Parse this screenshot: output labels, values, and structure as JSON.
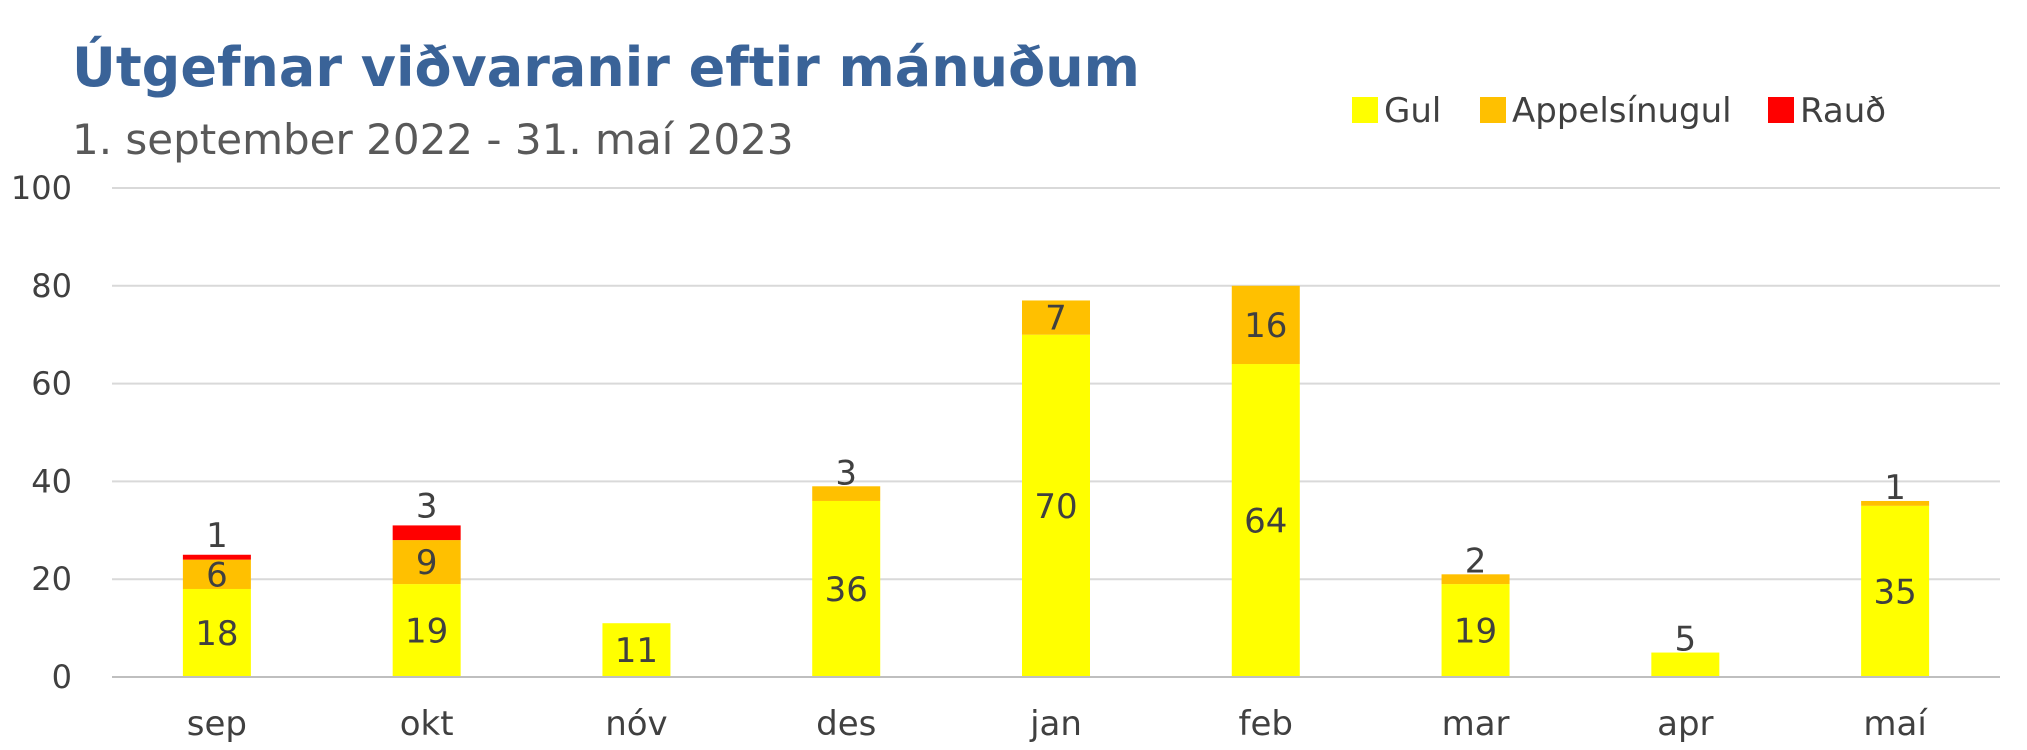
{
  "chart_data": {
    "type": "bar",
    "stacked": true,
    "title": "Útgefnar viðvaranir eftir mánuðum",
    "subtitle": "1. september 2022 - 31. maí 2023",
    "categories": [
      "sep",
      "okt",
      "nóv",
      "des",
      "jan",
      "feb",
      "mar",
      "apr",
      "maí"
    ],
    "series": [
      {
        "name": "Gul",
        "color": "#ffff00",
        "values": [
          18,
          19,
          11,
          36,
          70,
          64,
          19,
          5,
          35
        ]
      },
      {
        "name": "Appelsínugul",
        "color": "#ffc000",
        "values": [
          6,
          9,
          0,
          3,
          7,
          16,
          2,
          0,
          1
        ]
      },
      {
        "name": "Rauð",
        "color": "#ff0000",
        "values": [
          1,
          3,
          0,
          0,
          0,
          0,
          0,
          0,
          0
        ]
      }
    ],
    "ylim": [
      0,
      100
    ],
    "yticks": [
      0,
      20,
      40,
      60,
      80,
      100
    ],
    "grid": true,
    "legend_position": "top-right"
  }
}
